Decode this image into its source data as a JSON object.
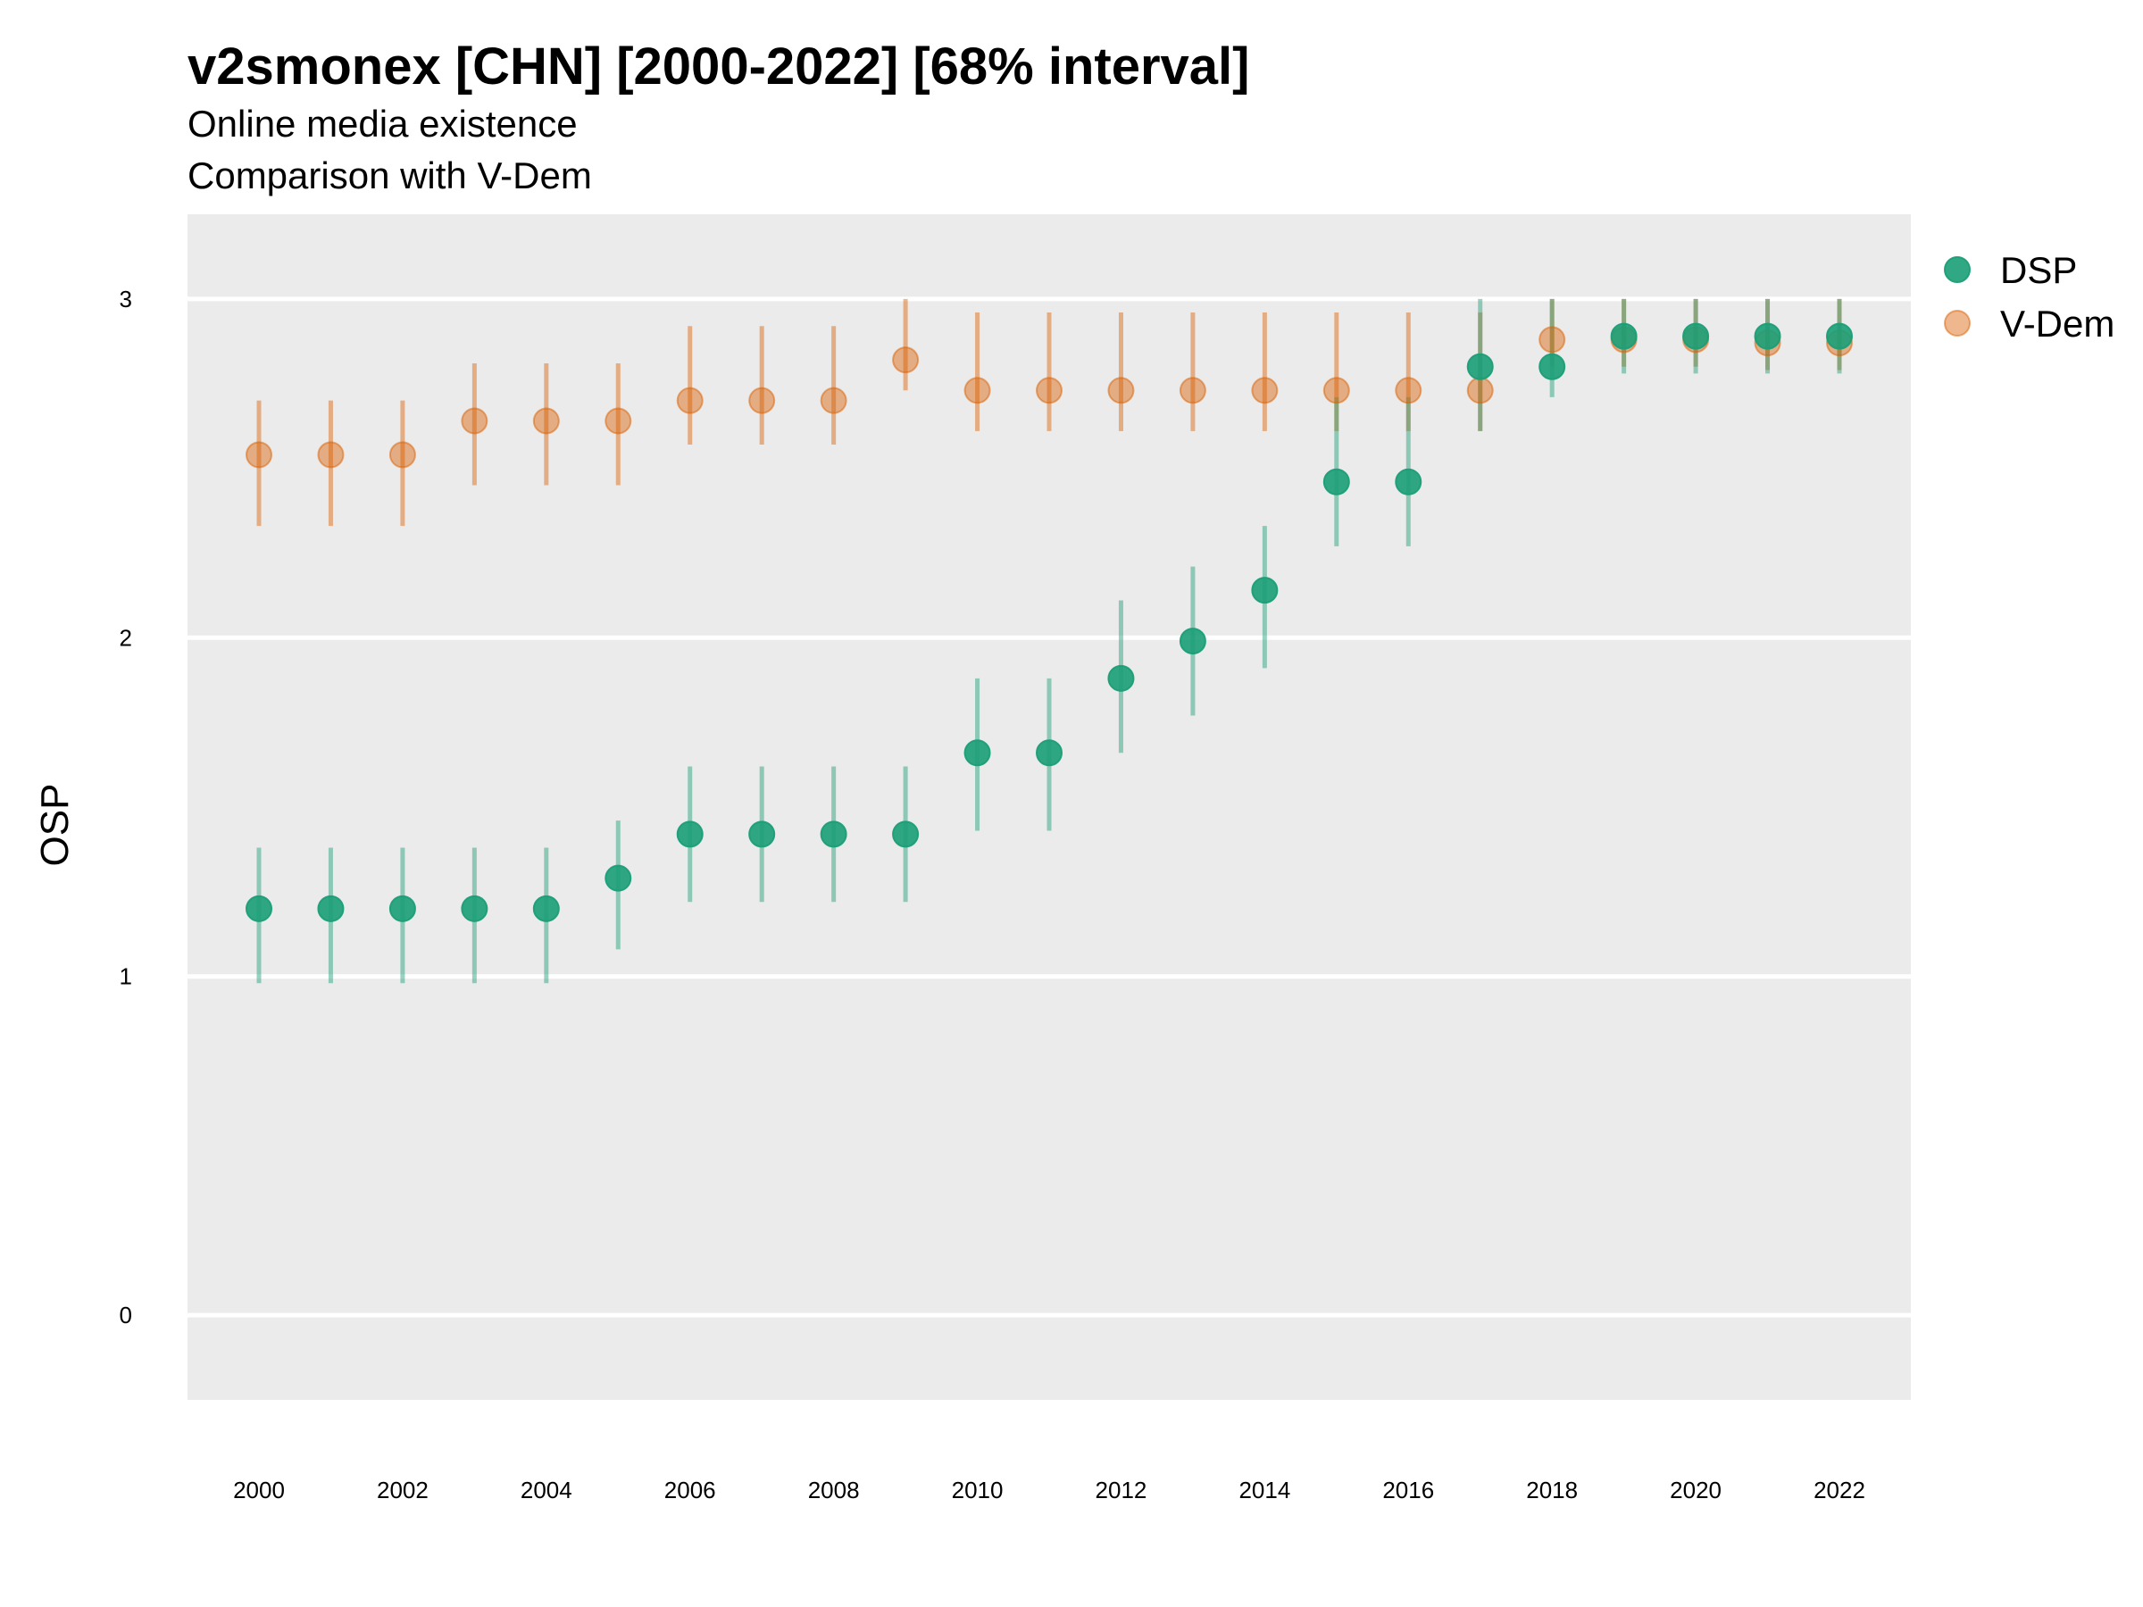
{
  "chart_data": {
    "type": "scatter",
    "title": "v2smonex [CHN] [2000-2022] [68% interval]",
    "subtitle_lines": [
      "Online media existence",
      "Comparison with V-Dem"
    ],
    "xlabel": "",
    "ylabel": "OSP",
    "xlim": [
      1999.0,
      2023.0
    ],
    "ylim": [
      -0.25,
      3.25
    ],
    "xticks": [
      2000,
      2002,
      2004,
      2006,
      2008,
      2010,
      2012,
      2014,
      2016,
      2018,
      2020,
      2022
    ],
    "yticks": [
      0,
      1,
      2,
      3
    ],
    "grid": true,
    "legend_position": "right",
    "x": [
      2000,
      2001,
      2002,
      2003,
      2004,
      2005,
      2006,
      2007,
      2008,
      2009,
      2010,
      2011,
      2012,
      2013,
      2014,
      2015,
      2016,
      2017,
      2018,
      2019,
      2020,
      2021,
      2022
    ],
    "series": [
      {
        "name": "V-Dem",
        "color": "#D95F02",
        "values": [
          2.54,
          2.54,
          2.54,
          2.64,
          2.64,
          2.64,
          2.7,
          2.7,
          2.7,
          2.82,
          2.73,
          2.73,
          2.73,
          2.73,
          2.73,
          2.73,
          2.73,
          2.73,
          2.88,
          2.88,
          2.88,
          2.87,
          2.87
        ],
        "lower": [
          2.33,
          2.33,
          2.33,
          2.45,
          2.45,
          2.45,
          2.57,
          2.57,
          2.57,
          2.73,
          2.61,
          2.61,
          2.61,
          2.61,
          2.61,
          2.61,
          2.61,
          2.61,
          2.8,
          2.8,
          2.8,
          2.79,
          2.79
        ],
        "upper": [
          2.7,
          2.7,
          2.7,
          2.81,
          2.81,
          2.81,
          2.92,
          2.92,
          2.92,
          3.0,
          2.96,
          2.96,
          2.96,
          2.96,
          2.96,
          2.96,
          2.96,
          2.96,
          3.0,
          3.0,
          3.0,
          3.0,
          3.0
        ]
      },
      {
        "name": "DSP",
        "color": "#1B9E77",
        "values": [
          1.2,
          1.2,
          1.2,
          1.2,
          1.2,
          1.29,
          1.42,
          1.42,
          1.42,
          1.42,
          1.66,
          1.66,
          1.88,
          1.99,
          2.14,
          2.46,
          2.46,
          2.8,
          2.8,
          2.89,
          2.89,
          2.89,
          2.89
        ],
        "lower": [
          0.98,
          0.98,
          0.98,
          0.98,
          0.98,
          1.08,
          1.22,
          1.22,
          1.22,
          1.22,
          1.43,
          1.43,
          1.66,
          1.77,
          1.91,
          2.27,
          2.27,
          2.61,
          2.71,
          2.78,
          2.78,
          2.78,
          2.78
        ],
        "upper": [
          1.38,
          1.38,
          1.38,
          1.38,
          1.38,
          1.46,
          1.62,
          1.62,
          1.62,
          1.62,
          1.88,
          1.88,
          2.11,
          2.21,
          2.33,
          2.71,
          2.71,
          3.0,
          3.0,
          3.0,
          3.0,
          3.0,
          3.0
        ]
      }
    ]
  }
}
